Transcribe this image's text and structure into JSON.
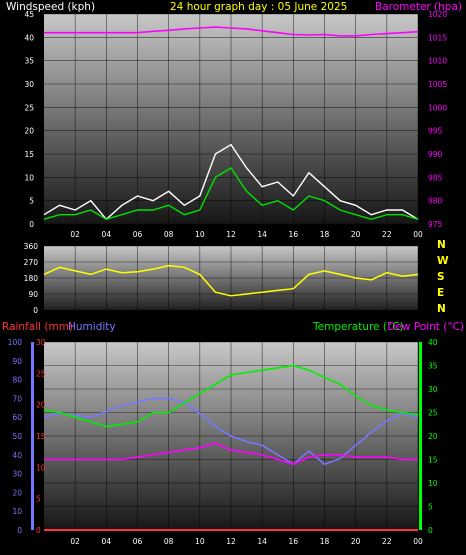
{
  "header": {
    "wind_label": "Windspeed (kph)",
    "title": "24 hour graph day : 05 June 2025",
    "baro_label": "Barometer (hpa)"
  },
  "lower_header": {
    "rain_label": "Rainfall (mm)",
    "humidity_label": "Humidity",
    "temp_label": "Temperature (°C)",
    "dew_label": "Dew Point (°C)"
  },
  "direction_letters": [
    "N",
    "W",
    "S",
    "E",
    "N"
  ],
  "colors": {
    "wind_gust": "#ffffff",
    "wind_avg": "#00e000",
    "barometer": "#ff00ff",
    "wind_dir": "#ffff00",
    "rain": "#ff3333",
    "humidity": "#7777ff",
    "temperature": "#00ee00",
    "dew_point": "#ff00ff",
    "temp_axis": "#00ff00"
  },
  "chart_data": [
    {
      "type": "line",
      "title": "24 hour graph day : 05 June 2025",
      "x_ticks": [
        "02",
        "04",
        "06",
        "08",
        "10",
        "12",
        "14",
        "16",
        "18",
        "20",
        "22",
        "00"
      ],
      "left_axis": {
        "label": "Windspeed (kph)",
        "min": 0,
        "max": 45,
        "ticks": [
          0,
          5,
          10,
          15,
          20,
          25,
          30,
          35,
          40,
          45
        ]
      },
      "right_axis": {
        "label": "Barometer (hpa)",
        "min": 975,
        "max": 1020,
        "ticks": [
          975,
          980,
          985,
          990,
          995,
          1000,
          1005,
          1010,
          1015,
          1020
        ]
      },
      "x_hours": [
        0,
        1,
        2,
        3,
        4,
        5,
        6,
        7,
        8,
        9,
        10,
        11,
        12,
        13,
        14,
        15,
        16,
        17,
        18,
        19,
        20,
        21,
        22,
        23,
        24
      ],
      "series": [
        {
          "name": "Windspeed (kph)",
          "axis": "left",
          "values": [
            2,
            4,
            3,
            5,
            1,
            4,
            6,
            5,
            7,
            4,
            6,
            15,
            17,
            12,
            8,
            9,
            6,
            11,
            8,
            5,
            4,
            2,
            3,
            3,
            1
          ]
        },
        {
          "name": "Wind average",
          "axis": "left",
          "values": [
            1,
            2,
            2,
            3,
            1,
            2,
            3,
            3,
            4,
            2,
            3,
            10,
            12,
            7,
            4,
            5,
            3,
            6,
            5,
            3,
            2,
            1,
            2,
            2,
            1
          ]
        },
        {
          "name": "Barometer (hpa)",
          "axis": "right",
          "values": [
            1016,
            1016,
            1016,
            1016,
            1016,
            1016,
            1016,
            1016.3,
            1016.5,
            1016.8,
            1017,
            1017.2,
            1017,
            1016.8,
            1016.4,
            1016,
            1015.6,
            1015.5,
            1015.6,
            1015.3,
            1015.3,
            1015.6,
            1015.8,
            1016,
            1016.2
          ]
        }
      ]
    },
    {
      "type": "line",
      "axis": {
        "min": 0,
        "max": 360,
        "ticks": [
          0,
          90,
          180,
          270,
          360
        ]
      },
      "x_hours": [
        0,
        1,
        2,
        3,
        4,
        5,
        6,
        7,
        8,
        9,
        10,
        11,
        12,
        13,
        14,
        15,
        16,
        17,
        18,
        19,
        20,
        21,
        22,
        23,
        24
      ],
      "series": [
        {
          "name": "Wind direction",
          "values": [
            200,
            240,
            220,
            200,
            230,
            210,
            215,
            230,
            250,
            240,
            200,
            100,
            80,
            90,
            100,
            110,
            120,
            200,
            220,
            200,
            180,
            170,
            210,
            190,
            200
          ]
        }
      ]
    },
    {
      "type": "line",
      "x_ticks": [
        "02",
        "04",
        "06",
        "08",
        "10",
        "12",
        "14",
        "16",
        "18",
        "20",
        "22",
        "00"
      ],
      "humidity_axis": {
        "label": "Humidity",
        "min": 0,
        "max": 100,
        "ticks": [
          0,
          10,
          20,
          30,
          40,
          50,
          60,
          70,
          80,
          90,
          100
        ]
      },
      "rain_axis": {
        "label": "Rainfall (mm)",
        "min": 0,
        "max": 30,
        "ticks": [
          0,
          5,
          10,
          15,
          20,
          25,
          30
        ]
      },
      "temp_axis": {
        "label": "Temperature (°C)",
        "min": 0,
        "max": 40,
        "ticks": [
          0,
          5,
          10,
          15,
          20,
          25,
          30,
          35,
          40
        ]
      },
      "x_hours": [
        0,
        1,
        2,
        3,
        4,
        5,
        6,
        7,
        8,
        9,
        10,
        11,
        12,
        13,
        14,
        15,
        16,
        17,
        18,
        19,
        20,
        21,
        22,
        23,
        24
      ],
      "series": [
        {
          "name": "Humidity",
          "axis": "humidity",
          "values": [
            60,
            62,
            61,
            60,
            63,
            66,
            68,
            70,
            70,
            68,
            62,
            55,
            50,
            47,
            45,
            40,
            35,
            42,
            35,
            38,
            45,
            52,
            58,
            62,
            60
          ]
        },
        {
          "name": "Temperature (°C)",
          "axis": "temp",
          "values": [
            25.5,
            25,
            24,
            23,
            22,
            22.5,
            23,
            25,
            25,
            27,
            29,
            31,
            33,
            33.5,
            34,
            34.5,
            35,
            34,
            32.5,
            31,
            28.5,
            26.5,
            25.5,
            25,
            24.5
          ]
        },
        {
          "name": "Dew Point (°C)",
          "axis": "temp",
          "values": [
            15,
            15,
            15,
            15,
            15,
            15,
            15.5,
            16,
            16.5,
            17,
            17.5,
            18.5,
            17,
            16.5,
            16,
            15,
            14,
            15.5,
            16,
            16,
            15.5,
            15.5,
            15.5,
            15,
            15
          ]
        },
        {
          "name": "Rainfall (mm)",
          "axis": "rain",
          "values": [
            0,
            0,
            0,
            0,
            0,
            0,
            0,
            0,
            0,
            0,
            0,
            0,
            0,
            0,
            0,
            0,
            0,
            0,
            0,
            0,
            0,
            0,
            0,
            0,
            0
          ]
        }
      ]
    }
  ]
}
